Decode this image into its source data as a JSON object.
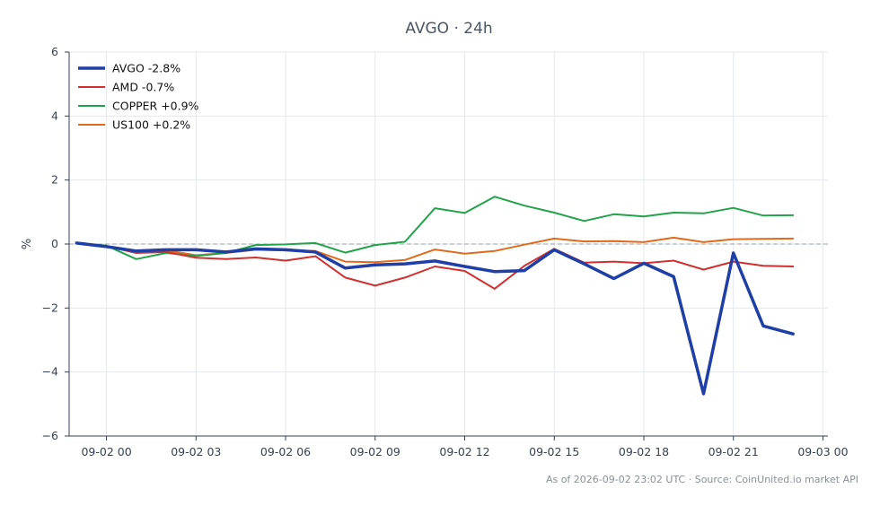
{
  "chart_data": {
    "type": "line",
    "title": "AVGO · 24h",
    "xlabel": "",
    "ylabel": "%",
    "ylim": [
      -6,
      6
    ],
    "yticks": [
      -6,
      -4,
      -2,
      0,
      2,
      4,
      6
    ],
    "ytick_labels": [
      "−6",
      "−4",
      "−2",
      "0",
      "2",
      "4",
      "6"
    ],
    "xlim": [
      "09-01 22:45",
      "09-03 00:10"
    ],
    "xticks": [
      "09-02 00",
      "09-02 03",
      "09-02 06",
      "09-02 09",
      "09-02 12",
      "09-02 15",
      "09-02 18",
      "09-02 21",
      "09-03 00"
    ],
    "x": [
      "09-01 23:00",
      "09-02 00:00",
      "09-02 01:00",
      "09-02 02:00",
      "09-02 03:00",
      "09-02 04:00",
      "09-02 05:00",
      "09-02 06:00",
      "09-02 07:00",
      "09-02 08:00",
      "09-02 09:00",
      "09-02 10:00",
      "09-02 11:00",
      "09-02 12:00",
      "09-02 13:00",
      "09-02 14:00",
      "09-02 15:00",
      "09-02 16:00",
      "09-02 17:00",
      "09-02 18:00",
      "09-02 19:00",
      "09-02 20:00",
      "09-02 21:00",
      "09-02 22:00",
      "09-02 23:00"
    ],
    "grid": true,
    "zero_line": true,
    "legend_position": "top-left",
    "series": [
      {
        "name": "AVGO -2.8%",
        "color": "#1f3fa6",
        "width": 3.5,
        "values": [
          0.03,
          -0.08,
          -0.22,
          -0.18,
          -0.18,
          -0.25,
          -0.15,
          -0.18,
          -0.25,
          -0.75,
          -0.65,
          -0.62,
          -0.53,
          -0.7,
          -0.86,
          -0.83,
          -0.18,
          -0.62,
          -1.08,
          -0.6,
          -1.02,
          -4.68,
          -0.28,
          -2.56,
          -2.81
        ]
      },
      {
        "name": "AMD -0.7%",
        "color": "#d03030",
        "width": 2,
        "values": [
          0.02,
          -0.07,
          -0.28,
          -0.25,
          -0.43,
          -0.47,
          -0.42,
          -0.52,
          -0.38,
          -1.05,
          -1.3,
          -1.05,
          -0.7,
          -0.84,
          -1.4,
          -0.68,
          -0.15,
          -0.58,
          -0.55,
          -0.6,
          -0.52,
          -0.8,
          -0.55,
          -0.68,
          -0.7
        ]
      },
      {
        "name": "COPPER +0.9%",
        "color": "#22a34a",
        "width": 2,
        "values": [
          0.03,
          -0.05,
          -0.47,
          -0.28,
          -0.37,
          -0.28,
          -0.03,
          -0.01,
          0.03,
          -0.27,
          -0.03,
          0.07,
          1.12,
          0.97,
          1.48,
          1.2,
          0.98,
          0.72,
          0.93,
          0.86,
          0.98,
          0.96,
          1.13,
          0.89,
          0.9
        ]
      },
      {
        "name": "US100 +0.2%",
        "color": "#e06a1b",
        "width": 2,
        "values": [
          0.02,
          -0.07,
          -0.22,
          -0.2,
          -0.35,
          -0.28,
          -0.18,
          -0.2,
          -0.22,
          -0.55,
          -0.57,
          -0.5,
          -0.17,
          -0.3,
          -0.22,
          -0.02,
          0.17,
          0.08,
          0.09,
          0.06,
          0.2,
          0.06,
          0.15,
          0.16,
          0.17
        ]
      }
    ],
    "footer": "As of 2026-09-02 23:02 UTC · Source: CoinUnited.io market API"
  }
}
